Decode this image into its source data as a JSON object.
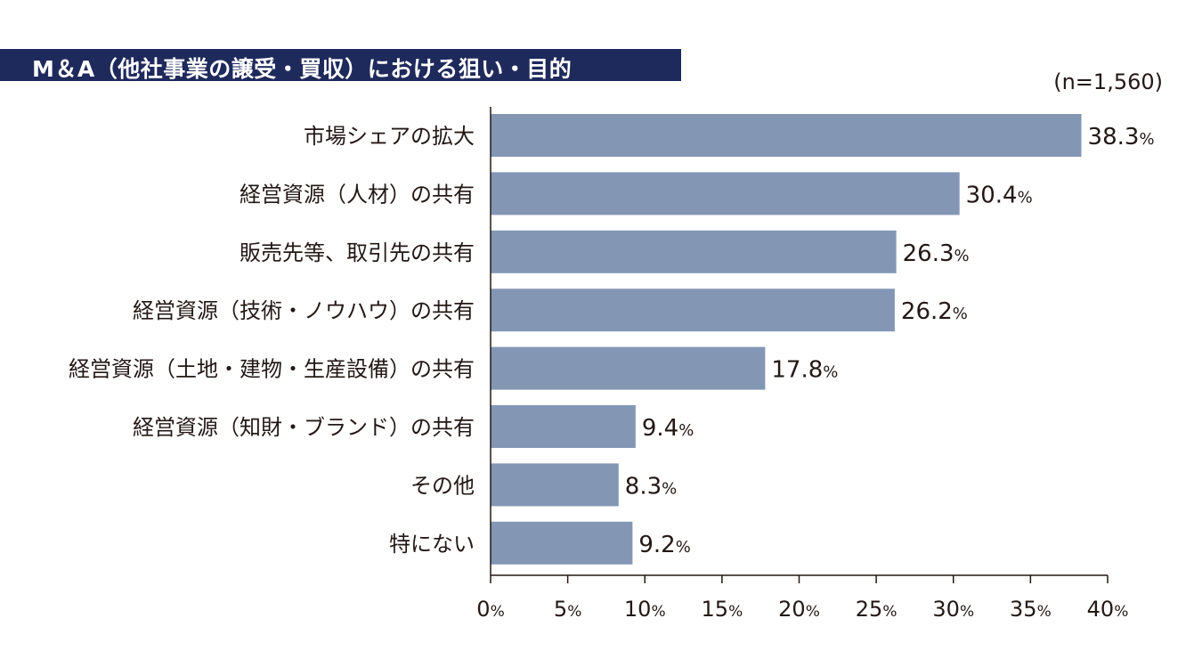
{
  "header": {
    "title": "M＆A（他社事業の譲受・買収）における狙い・目的",
    "sample_size": "(n=1,560)"
  },
  "colors": {
    "title_bg": "#1f2a5c",
    "bar": "#8397b5",
    "axis": "#231815"
  },
  "chart_data": {
    "type": "bar",
    "orientation": "horizontal",
    "title": "M＆A（他社事業の譲受・買収）における狙い・目的",
    "categories": [
      "市場シェアの拡大",
      "経営資源（人材）の共有",
      "販売先等、取引先の共有",
      "経営資源（技術・ノウハウ）の共有",
      "経営資源（土地・建物・生産設備）の共有",
      "経営資源（知財・ブランド）の共有",
      "その他",
      "特にない"
    ],
    "values": [
      38.3,
      30.4,
      26.3,
      26.2,
      17.8,
      9.4,
      8.3,
      9.2
    ],
    "value_labels": [
      "38.3",
      "30.4",
      "26.3",
      "26.2",
      "17.8",
      "9.4",
      "8.3",
      "9.2"
    ],
    "unit": "%",
    "xlim": [
      0,
      40
    ],
    "x_ticks": [
      "0",
      "5",
      "10",
      "15",
      "20",
      "25",
      "30",
      "35",
      "40"
    ],
    "grid": false,
    "legend": "none"
  }
}
